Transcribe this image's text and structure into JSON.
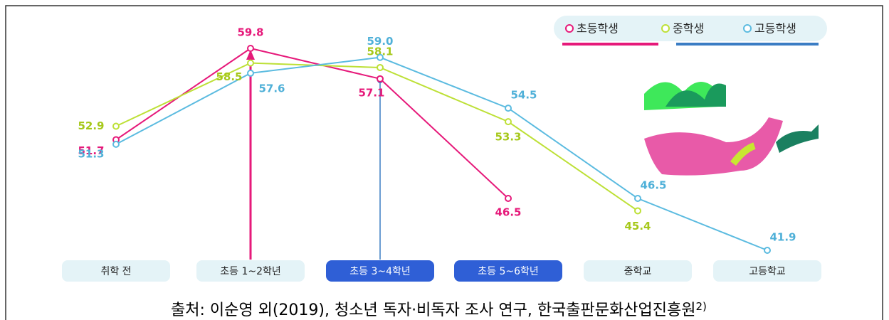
{
  "chart_data": {
    "type": "line",
    "categories": [
      "취학 전",
      "초등 1~2학년",
      "초등 3~4학년",
      "초등 5~6학년",
      "중학교",
      "고등학교"
    ],
    "highlight": [
      false,
      false,
      true,
      true,
      false,
      false
    ],
    "series": [
      {
        "name": "초등학생",
        "color": "#e6197a",
        "values": [
          51.7,
          59.8,
          57.1,
          46.5,
          null,
          null
        ],
        "value_labels": [
          "51.7",
          "59.8",
          "57.1",
          "46.5",
          null,
          null
        ]
      },
      {
        "name": "중학생",
        "color": "#bde036",
        "values": [
          52.9,
          58.5,
          58.1,
          53.3,
          45.4,
          null
        ],
        "value_labels": [
          "52.9",
          "58.5",
          "58.1",
          "53.3",
          "45.4",
          null
        ]
      },
      {
        "name": "고등학생",
        "color": "#5bbbe0",
        "values": [
          51.3,
          57.6,
          59.0,
          54.5,
          46.5,
          41.9
        ],
        "value_labels": [
          "51.3",
          "57.6",
          "59.0",
          "54.5",
          "46.5",
          "41.9"
        ]
      }
    ],
    "source": "출처: 이순영 외(2019), 청소년 독자·비독자 조사 연구, 한국출판문화산업진흥원",
    "source_mark": "2)"
  }
}
